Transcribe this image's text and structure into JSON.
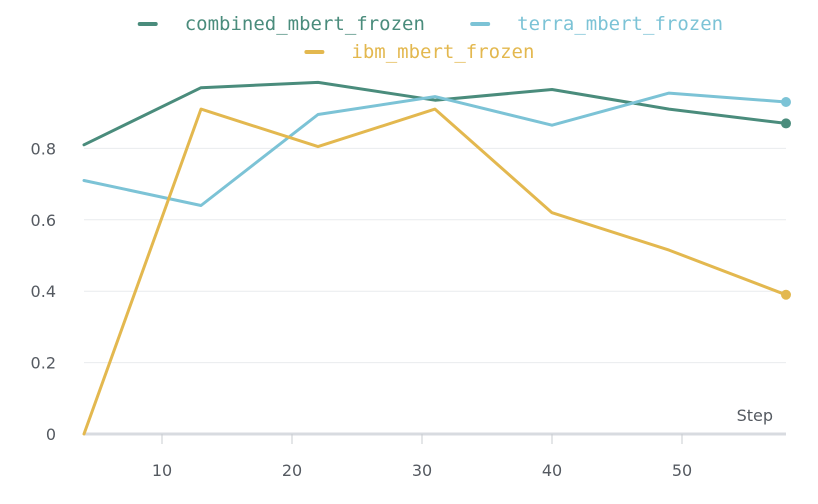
{
  "chart_data": {
    "type": "line",
    "xlabel": "Step",
    "ylabel": "",
    "xlim": [
      4,
      58
    ],
    "ylim": [
      0,
      1
    ],
    "xticks": [
      10,
      20,
      30,
      40,
      50
    ],
    "yticks": [
      0,
      0.2,
      0.4,
      0.6,
      0.8
    ],
    "xtick_labels": [
      "10",
      "20",
      "30",
      "40",
      "50"
    ],
    "ytick_labels": [
      "0",
      "0.2",
      "0.4",
      "0.6",
      "0.8"
    ],
    "grid": "horizontal",
    "legend_position": "top",
    "series": [
      {
        "name": "combined_mbert_frozen",
        "color": "#4a8c7c",
        "x": [
          4,
          13,
          22,
          31,
          40,
          49,
          58
        ],
        "y": [
          0.81,
          0.97,
          0.985,
          0.935,
          0.965,
          0.91,
          0.87
        ]
      },
      {
        "name": "terra_mbert_frozen",
        "color": "#7cc3d6",
        "x": [
          4,
          13,
          22,
          31,
          40,
          49,
          58
        ],
        "y": [
          0.71,
          0.64,
          0.895,
          0.945,
          0.865,
          0.955,
          0.93
        ]
      },
      {
        "name": "ibm_mbert_frozen",
        "color": "#e3b84f",
        "x": [
          4,
          13,
          22,
          31,
          40,
          49,
          58
        ],
        "y": [
          0.0,
          0.91,
          0.805,
          0.91,
          0.62,
          0.515,
          0.39
        ]
      }
    ]
  }
}
